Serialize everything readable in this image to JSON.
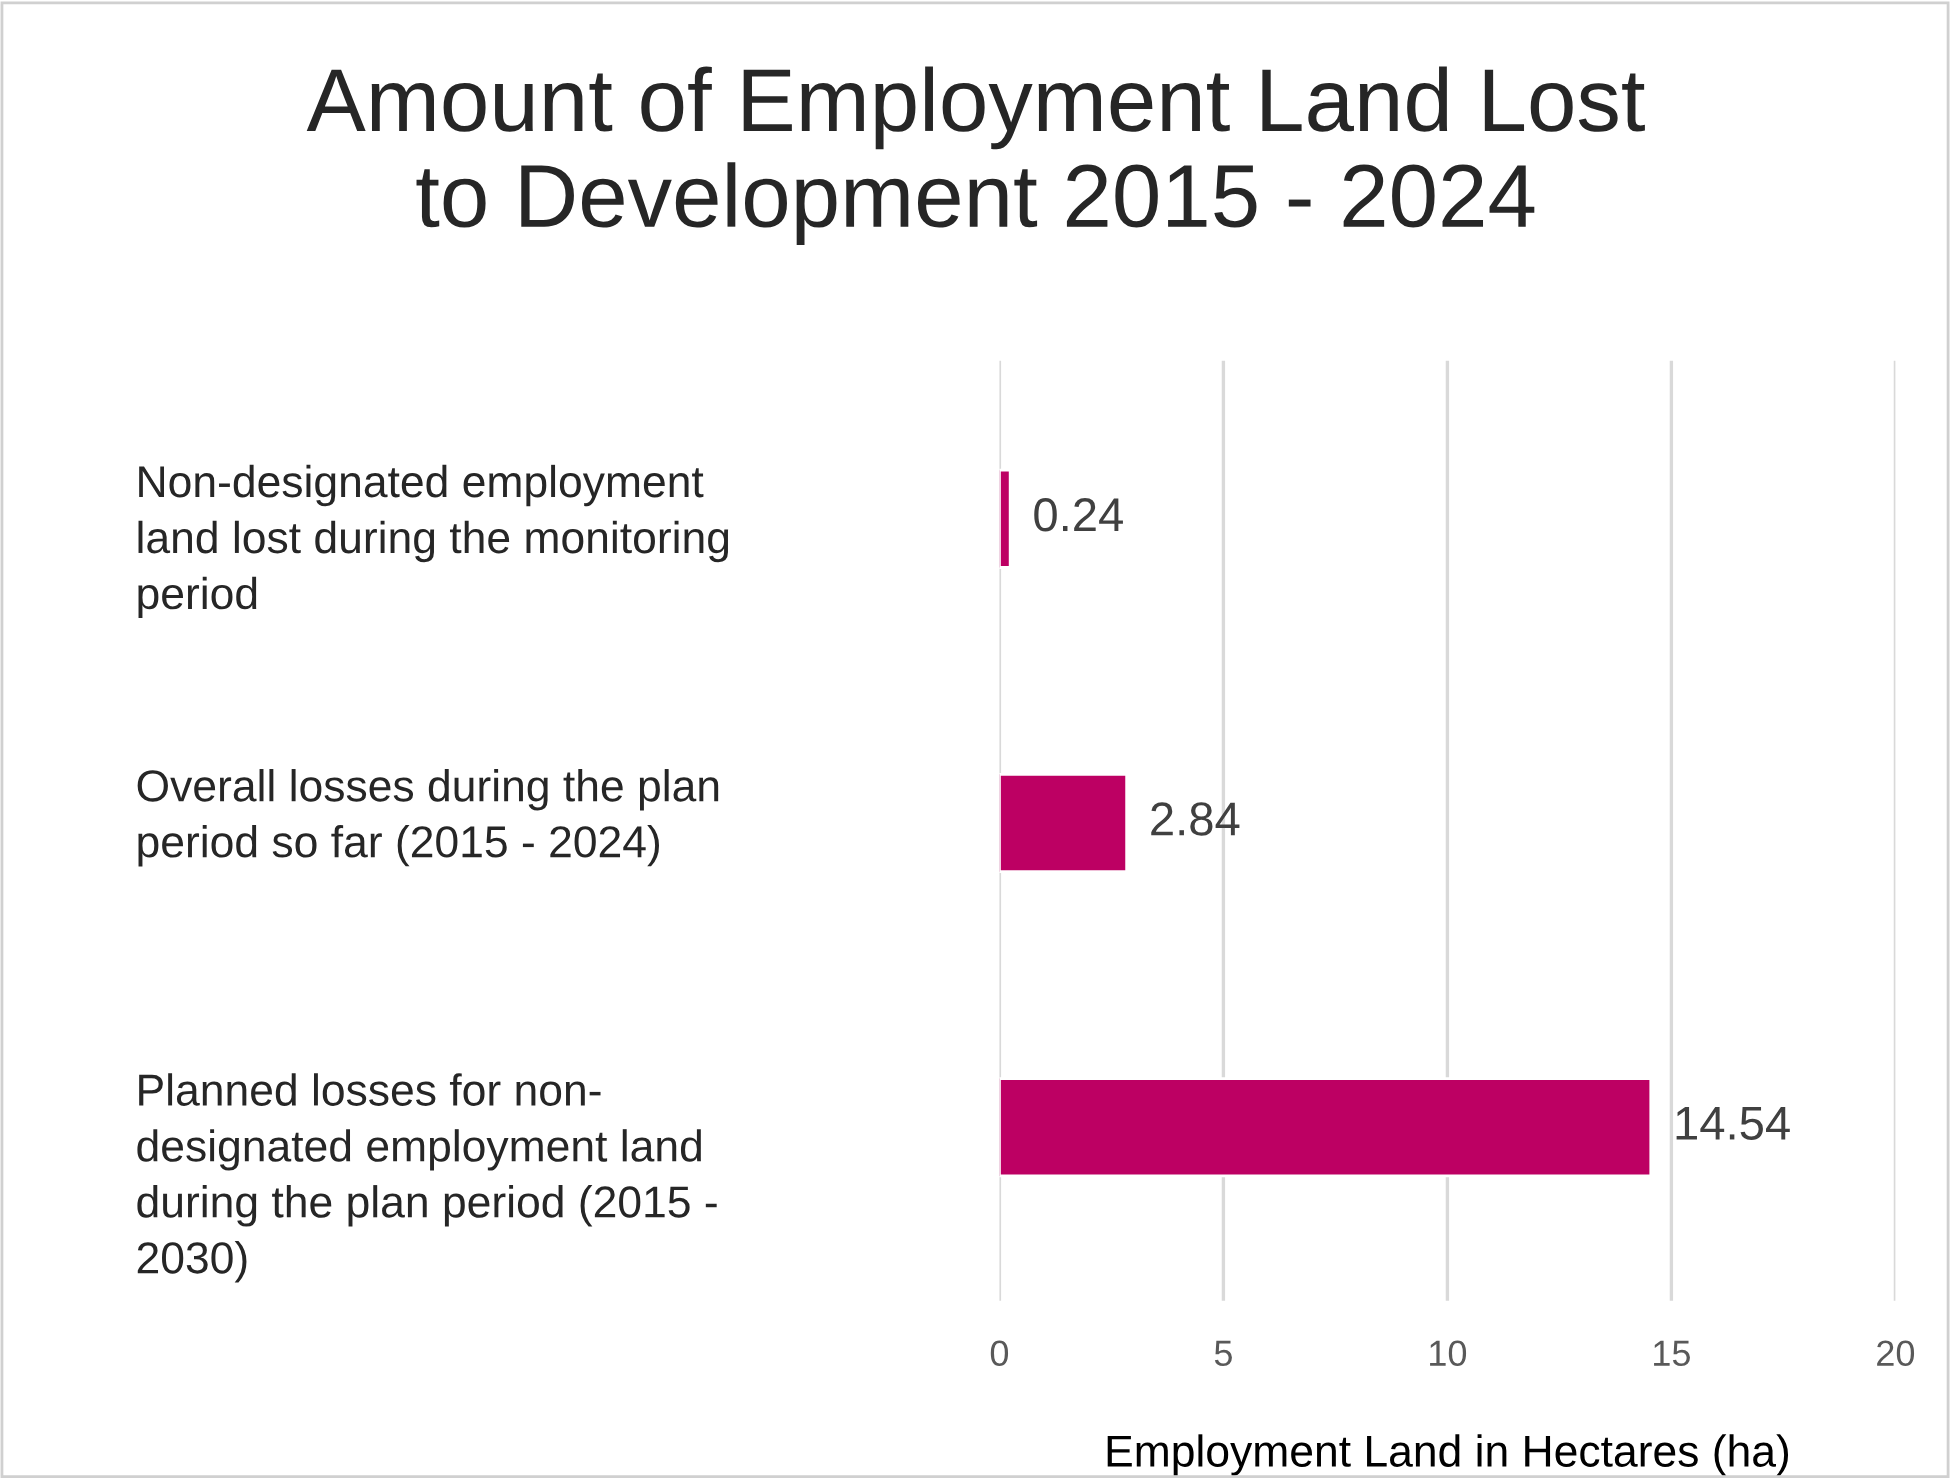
{
  "chart_data": {
    "type": "bar",
    "orientation": "horizontal",
    "title": "Amount of Employment Land Lost\nto Development 2015 - 2024",
    "xlabel": "Employment Land in Hectares (ha)",
    "categories": [
      "Non-designated employment\nland lost during the monitoring\nperiod",
      "Overall losses during the plan\nperiod so far (2015 - 2024)",
      "Planned losses for non-\ndesignated employment land\nduring the plan period (2015 -\n2030)"
    ],
    "values": [
      0.24,
      2.84,
      14.54
    ],
    "color": "#bd0063",
    "xlim": [
      0,
      20
    ],
    "xticks": [
      0,
      5,
      10,
      15,
      20
    ],
    "grid": "x",
    "data_labels": true
  }
}
